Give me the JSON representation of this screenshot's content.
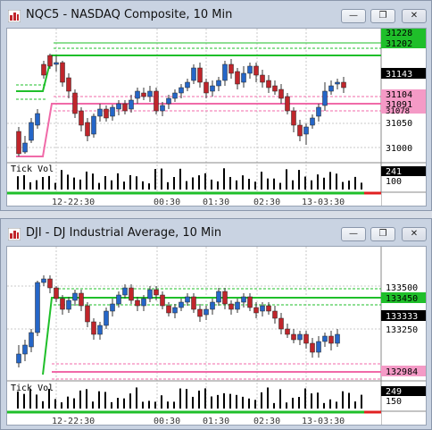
{
  "windows": [
    {
      "title": "NQC5 - NASDAQ Composite, 10 Min",
      "price_labels": [
        "31228",
        "31202",
        "31143",
        "31104",
        "31091",
        "31078",
        "31050",
        "31000"
      ],
      "vol_labels": [
        "241",
        "100"
      ],
      "time_labels": [
        "12-22:30",
        "00:30",
        "01:30",
        "02:30",
        "13-03:30"
      ],
      "tick_vol_label": "Tick Vol",
      "buttons": {
        "minimize": "—",
        "restore": "❐",
        "close": "✕"
      }
    },
    {
      "title": "DJI - DJ Industrial Average, 10 Min",
      "price_labels": [
        "133500",
        "133450",
        "133333",
        "133250",
        "132984"
      ],
      "vol_labels": [
        "249",
        "150"
      ],
      "time_labels": [
        "12-22:30",
        "00:30",
        "01:30",
        "02:30",
        "13-03:30"
      ],
      "tick_vol_label": "Tick Vol",
      "buttons": {
        "minimize": "—",
        "restore": "❐",
        "close": "✕"
      }
    }
  ],
  "colors": {
    "up_candle": "#2566c8",
    "down_candle": "#c0252b",
    "green_line": "#1fbf2a",
    "pink_line": "#f06aa8",
    "green_label": "#1fbf2a",
    "pink_label": "#f49ac6"
  }
}
